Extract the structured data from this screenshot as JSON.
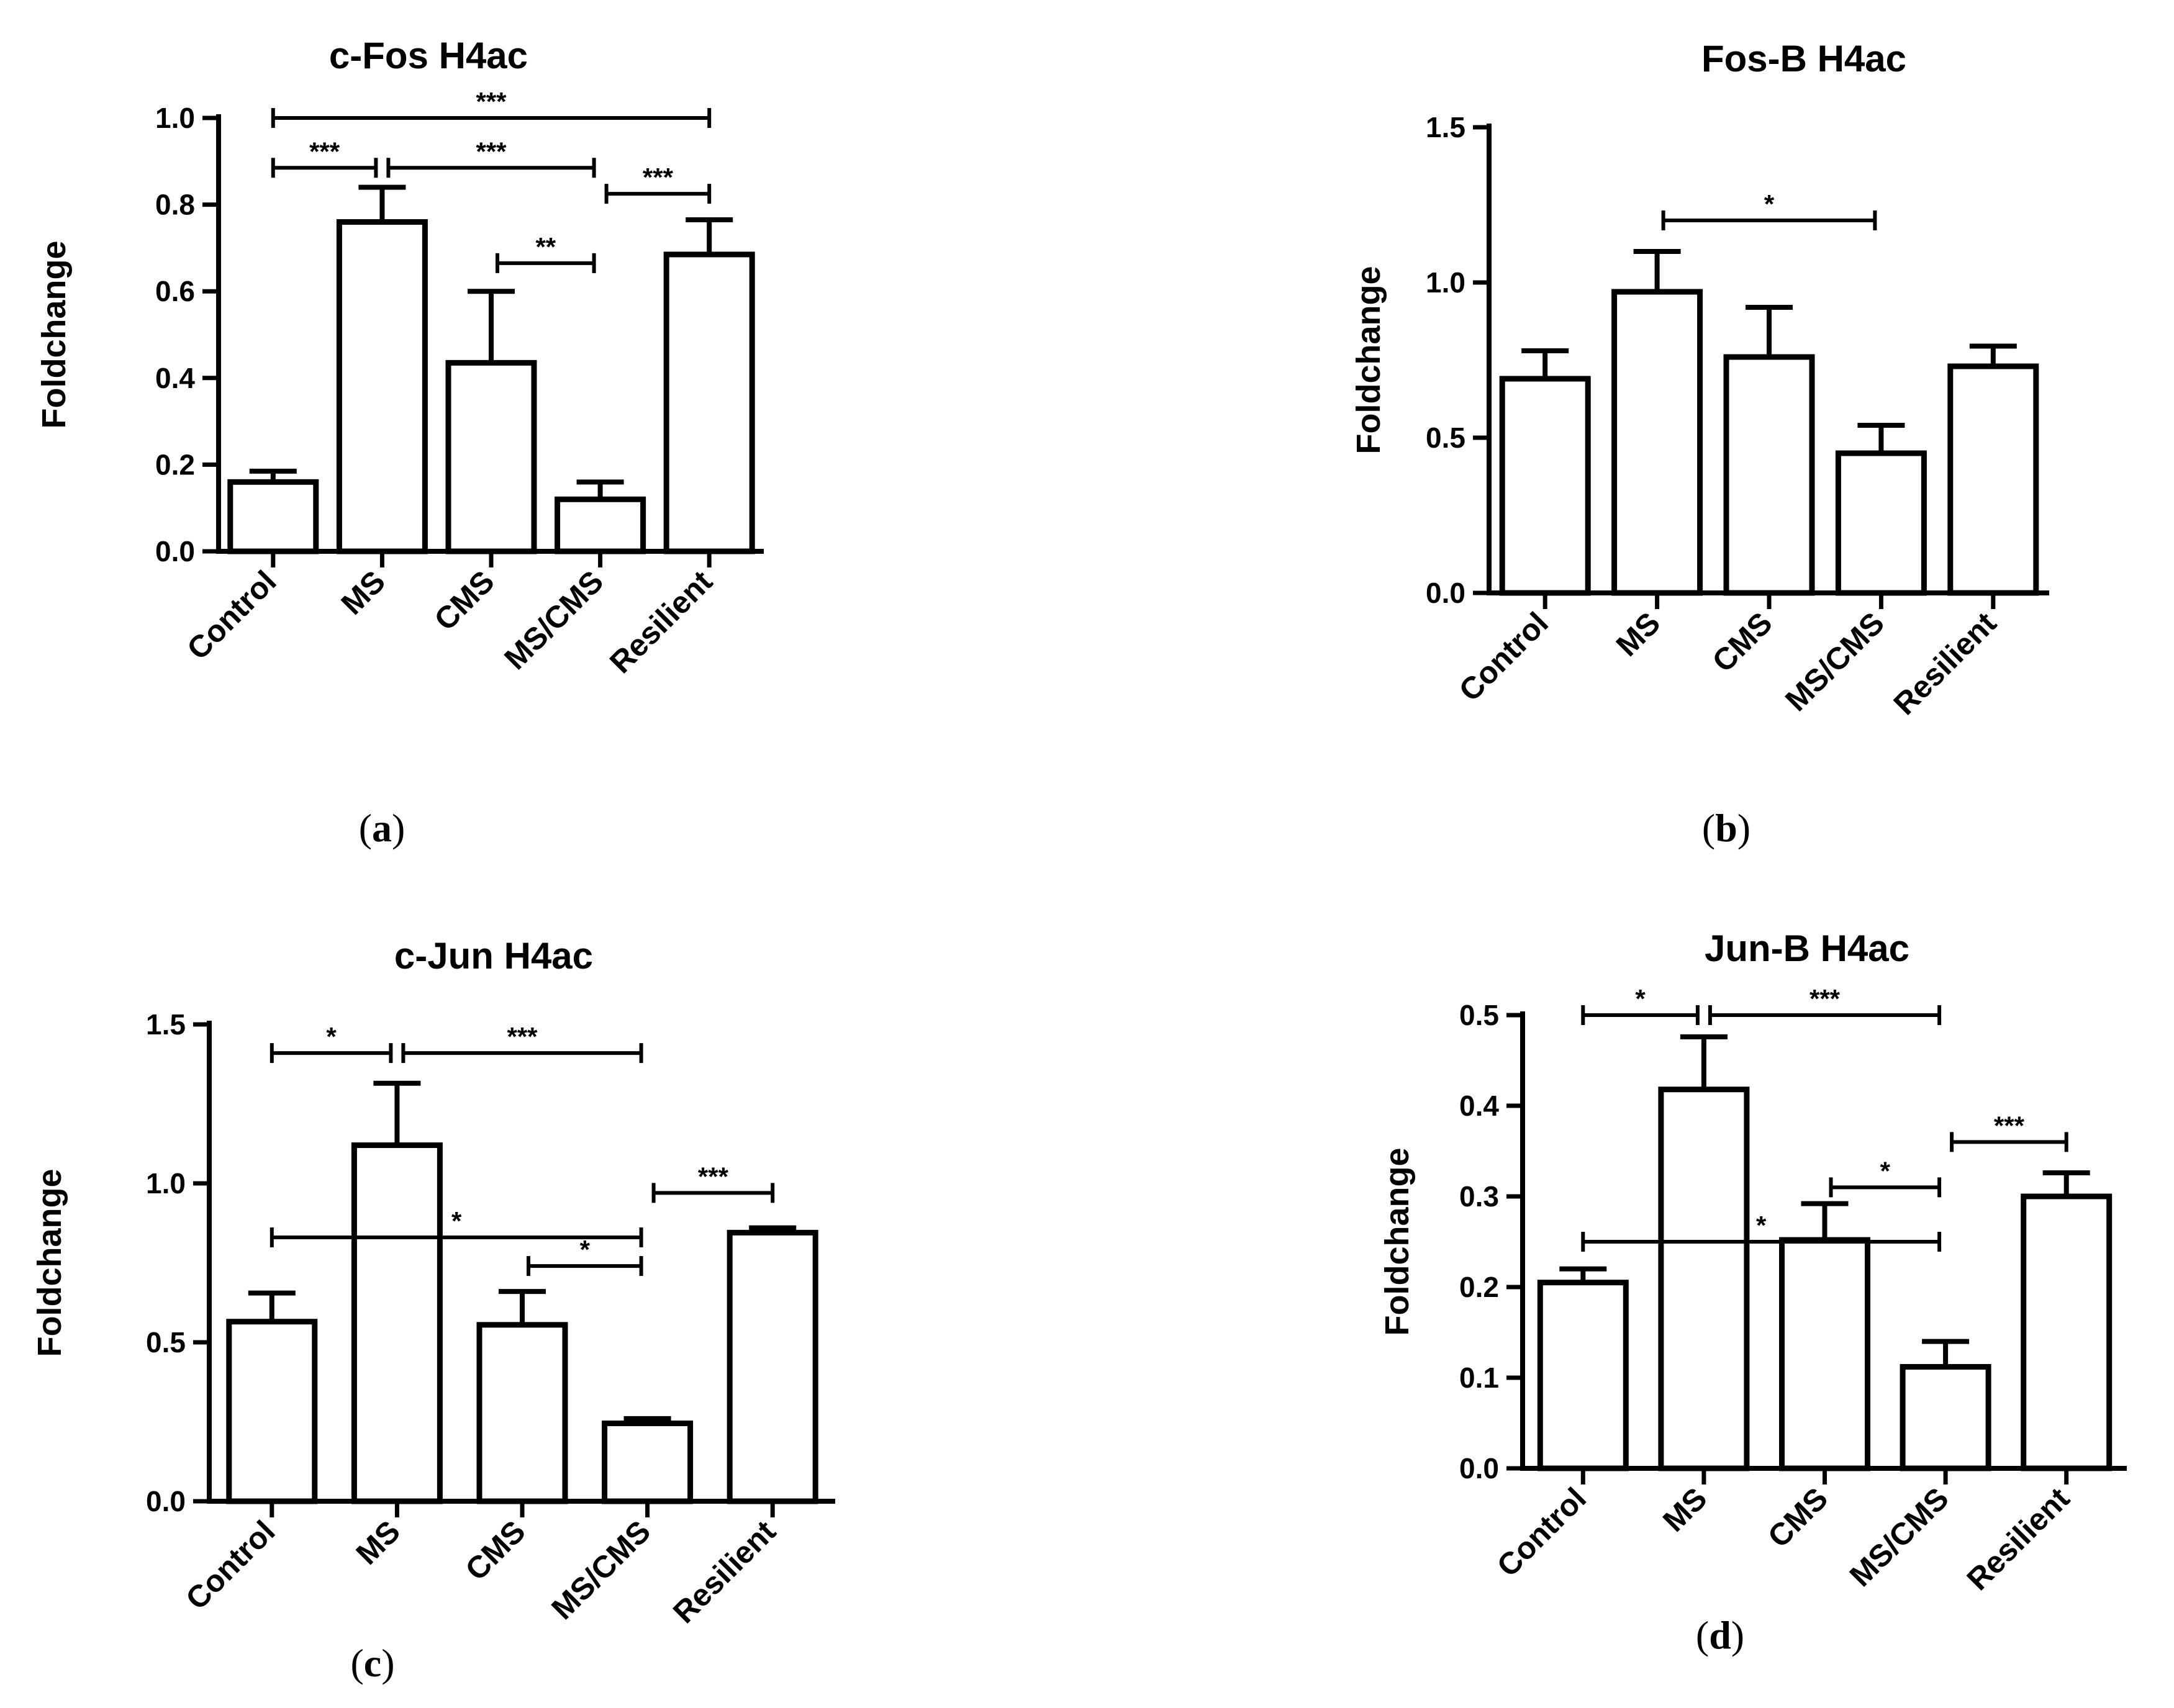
{
  "chart_data": [
    {
      "type": "bar",
      "title": "c-Fos H4ac",
      "ylabel": "Foldchange",
      "xlabel": "",
      "panel_label": "a",
      "categories": [
        "Control",
        "MS",
        "CMS",
        "MS/CMS",
        "Resilient"
      ],
      "values": [
        0.16,
        0.76,
        0.435,
        0.12,
        0.685
      ],
      "errors": [
        0.025,
        0.08,
        0.165,
        0.04,
        0.08
      ],
      "ylim": [
        0,
        1.0
      ],
      "yticks": [
        "0.0",
        "0.2",
        "0.4",
        "0.6",
        "0.8",
        "1.0"
      ],
      "significance": [
        {
          "from": 0,
          "to": 4,
          "y": 1.0,
          "label": "***"
        },
        {
          "from": 0,
          "to": 1,
          "y": 0.885,
          "label": "***"
        },
        {
          "from": 1,
          "to": 3,
          "y": 0.885,
          "label": "***"
        },
        {
          "from": 3,
          "to": 4,
          "y": 0.825,
          "label": "***"
        },
        {
          "from": 2,
          "to": 3,
          "y": 0.665,
          "label": "**"
        }
      ]
    },
    {
      "type": "bar",
      "title": "Fos-B H4ac",
      "ylabel": "Foldchange",
      "xlabel": "",
      "panel_label": "b",
      "categories": [
        "Control",
        "MS",
        "CMS",
        "MS/CMS",
        "Resilient"
      ],
      "values": [
        0.69,
        0.97,
        0.76,
        0.45,
        0.73
      ],
      "errors": [
        0.09,
        0.13,
        0.16,
        0.09,
        0.065
      ],
      "ylim": [
        0,
        1.5
      ],
      "yticks": [
        "0.0",
        "0.5",
        "1.0",
        "1.5"
      ],
      "significance": [
        {
          "from": 1,
          "to": 3,
          "y": 1.2,
          "label": "*"
        }
      ]
    },
    {
      "type": "bar",
      "title": "c-Jun H4ac",
      "ylabel": "Foldchange",
      "xlabel": "",
      "panel_label": "c",
      "categories": [
        "Control",
        "MS",
        "CMS",
        "MS/CMS",
        "Resilient"
      ],
      "values": [
        0.565,
        1.12,
        0.555,
        0.245,
        0.845
      ],
      "errors": [
        0.09,
        0.195,
        0.105,
        0.015,
        0.015
      ],
      "ylim": [
        0,
        1.5
      ],
      "yticks": [
        "0.0",
        "0.5",
        "1.0",
        "1.5"
      ],
      "significance": [
        {
          "from": 0,
          "to": 1,
          "y": 1.41,
          "label": "*"
        },
        {
          "from": 1,
          "to": 3,
          "y": 1.41,
          "label": "***"
        },
        {
          "from": 3,
          "to": 4,
          "y": 0.97,
          "label": "***"
        },
        {
          "from": 0,
          "to": 3,
          "y": 0.83,
          "label": "*"
        },
        {
          "from": 2,
          "to": 3,
          "y": 0.74,
          "label": "*"
        }
      ]
    },
    {
      "type": "bar",
      "title": "Jun-B H4ac",
      "ylabel": "Foldchange",
      "xlabel": "",
      "panel_label": "d",
      "categories": [
        "Control",
        "MS",
        "CMS",
        "MS/CMS",
        "Resilient"
      ],
      "values": [
        0.205,
        0.418,
        0.252,
        0.112,
        0.3
      ],
      "errors": [
        0.015,
        0.058,
        0.04,
        0.028,
        0.026
      ],
      "ylim": [
        0,
        0.5
      ],
      "yticks": [
        "0.0",
        "0.1",
        "0.2",
        "0.3",
        "0.4",
        "0.5"
      ],
      "significance": [
        {
          "from": 0,
          "to": 1,
          "y": 0.5,
          "label": "*"
        },
        {
          "from": 1,
          "to": 3,
          "y": 0.5,
          "label": "***"
        },
        {
          "from": 3,
          "to": 4,
          "y": 0.36,
          "label": "***"
        },
        {
          "from": 2,
          "to": 3,
          "y": 0.31,
          "label": "*"
        },
        {
          "from": 0,
          "to": 3,
          "y": 0.25,
          "label": "*"
        }
      ]
    }
  ]
}
